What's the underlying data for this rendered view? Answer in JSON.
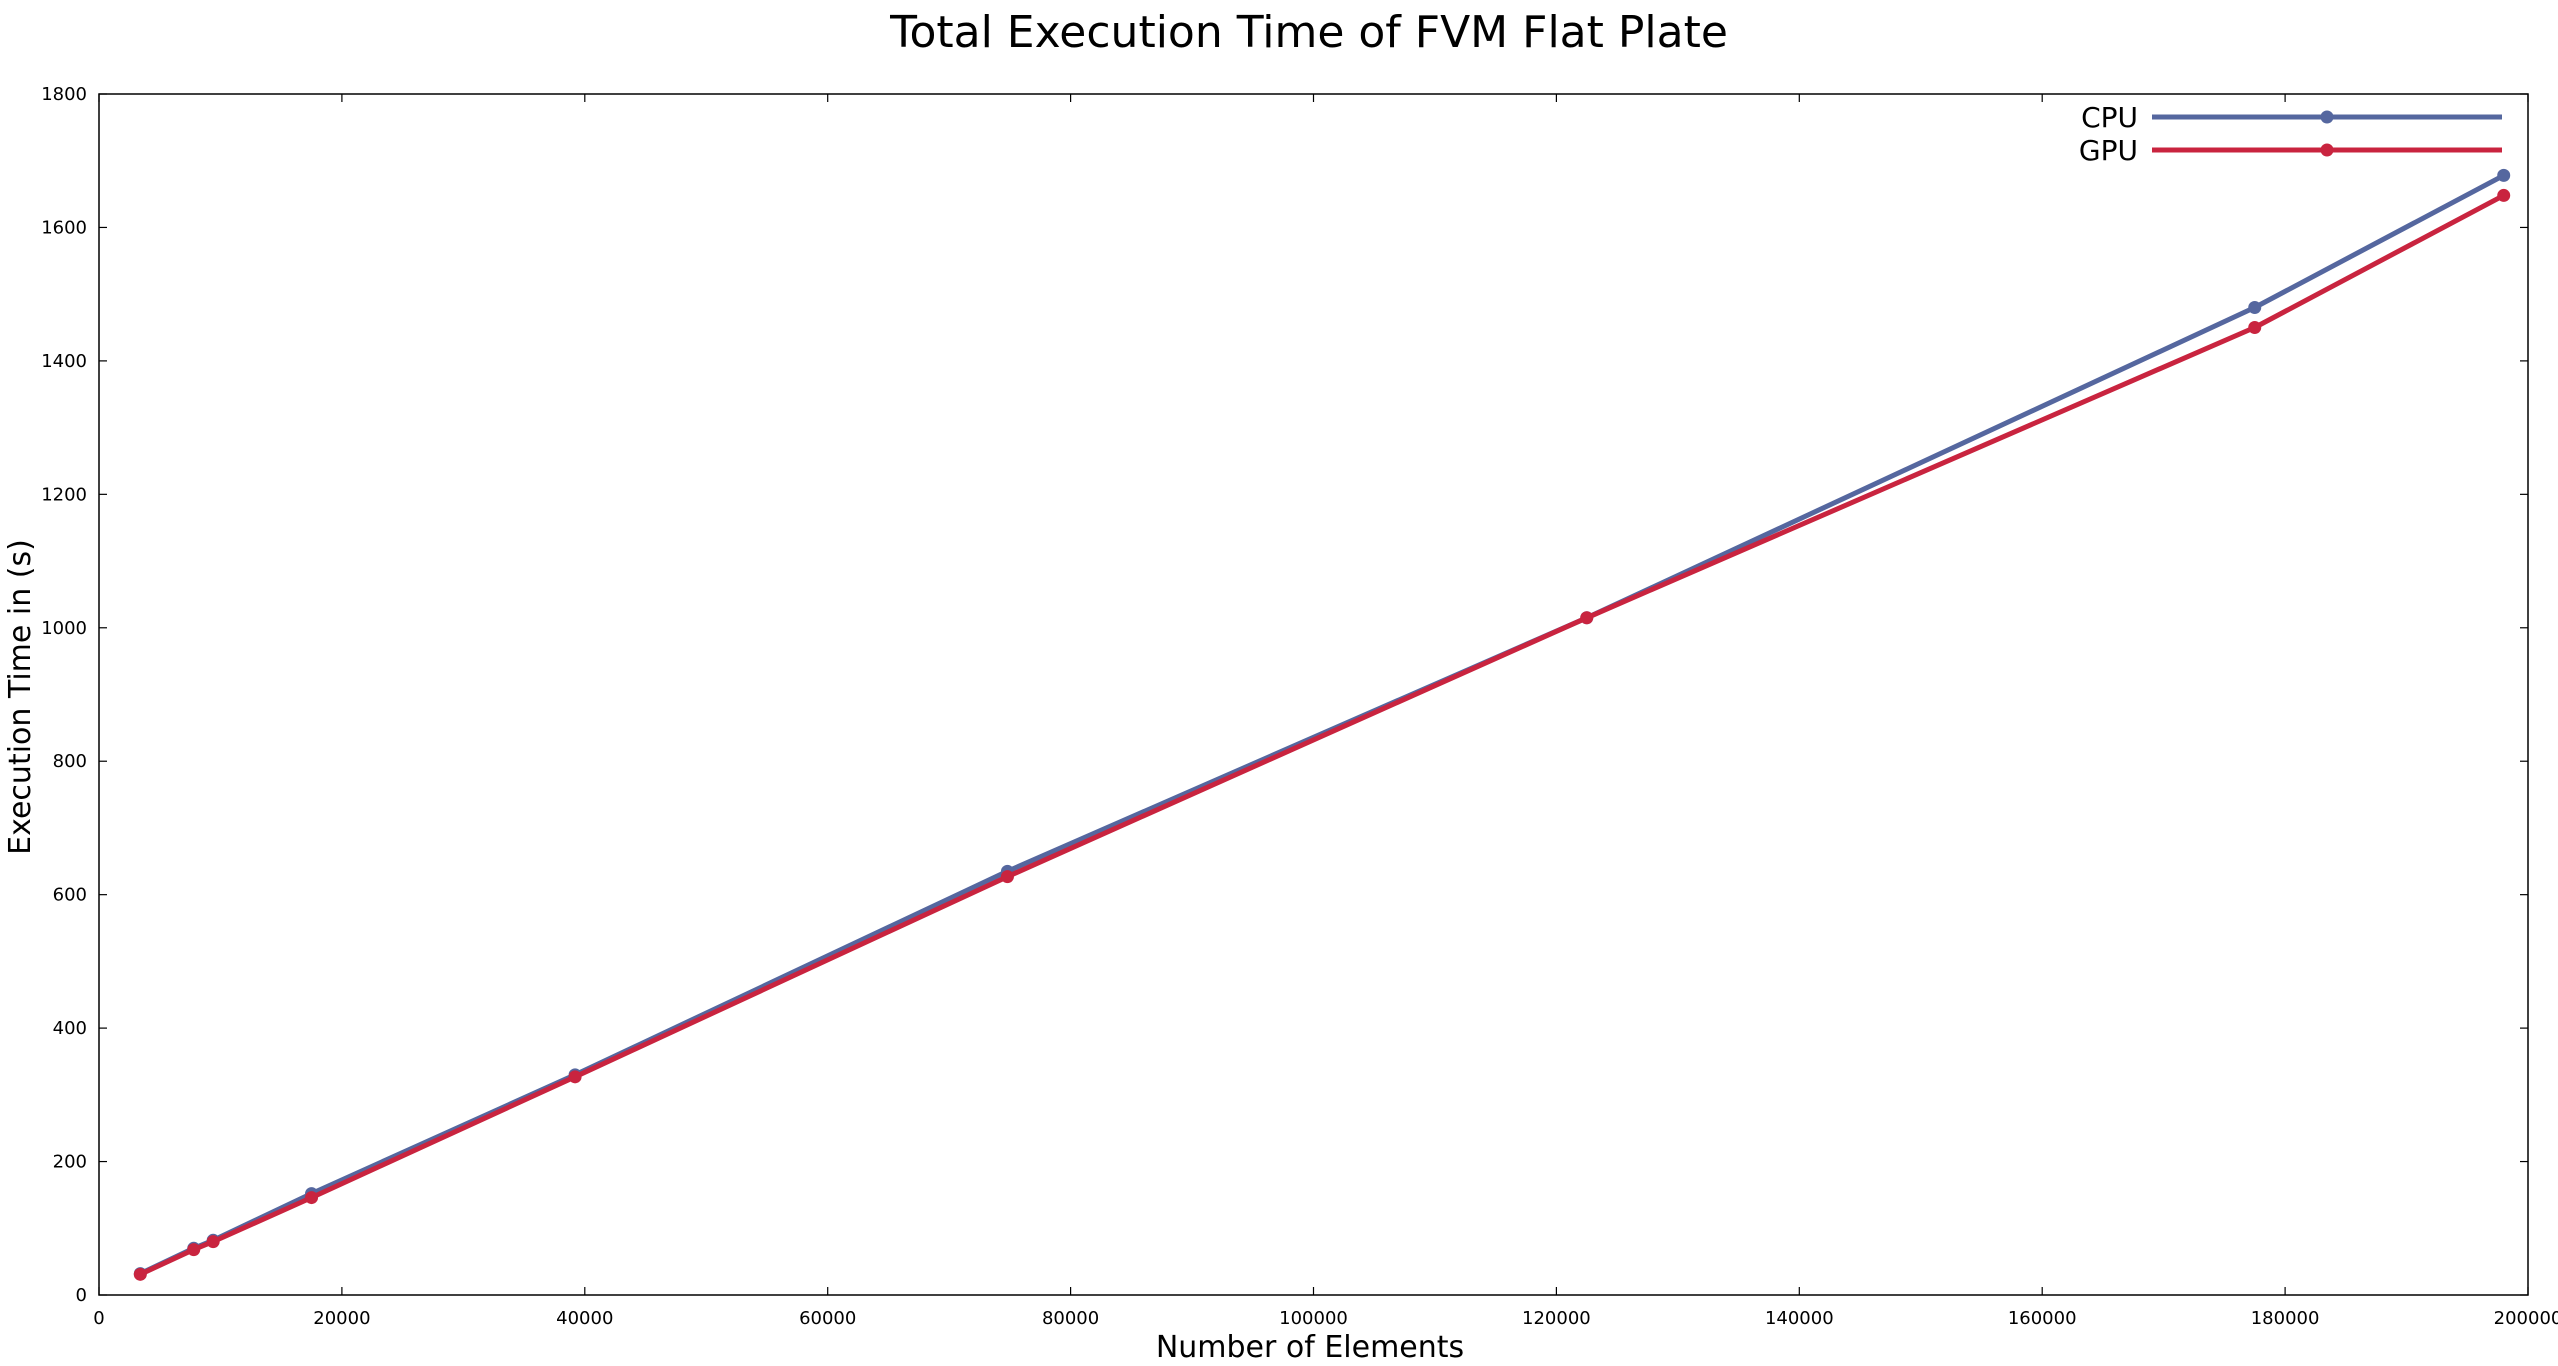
{
  "chart_data": {
    "type": "line",
    "title": "Total Execution Time of FVM Flat Plate",
    "xlabel": "Number of Elements",
    "ylabel": "Execution Time in (s)",
    "xlim": [
      0,
      200000
    ],
    "ylim": [
      0,
      1800
    ],
    "xticks": [
      "0",
      "20000",
      "40000",
      "60000",
      "80000",
      "100000",
      "120000",
      "140000",
      "160000",
      "180000",
      "200000"
    ],
    "yticks": [
      "0",
      "200",
      "400",
      "600",
      "800",
      "1000",
      "1200",
      "1400",
      "1600",
      "1800"
    ],
    "grid": false,
    "legend_position": "top-right",
    "series": [
      {
        "name": "CPU",
        "color": "#55679f",
        "x": [
          3400,
          7800,
          9400,
          17500,
          39200,
          74800,
          122500,
          177500,
          198000
        ],
        "y": [
          32,
          70,
          82,
          152,
          330,
          635,
          1015,
          1480,
          1678
        ]
      },
      {
        "name": "GPU",
        "color": "#c9243f",
        "x": [
          3400,
          7800,
          9400,
          17500,
          39200,
          74800,
          122500,
          177500,
          198000
        ],
        "y": [
          31,
          68,
          80,
          146,
          327,
          627,
          1015,
          1450,
          1648
        ]
      }
    ]
  }
}
